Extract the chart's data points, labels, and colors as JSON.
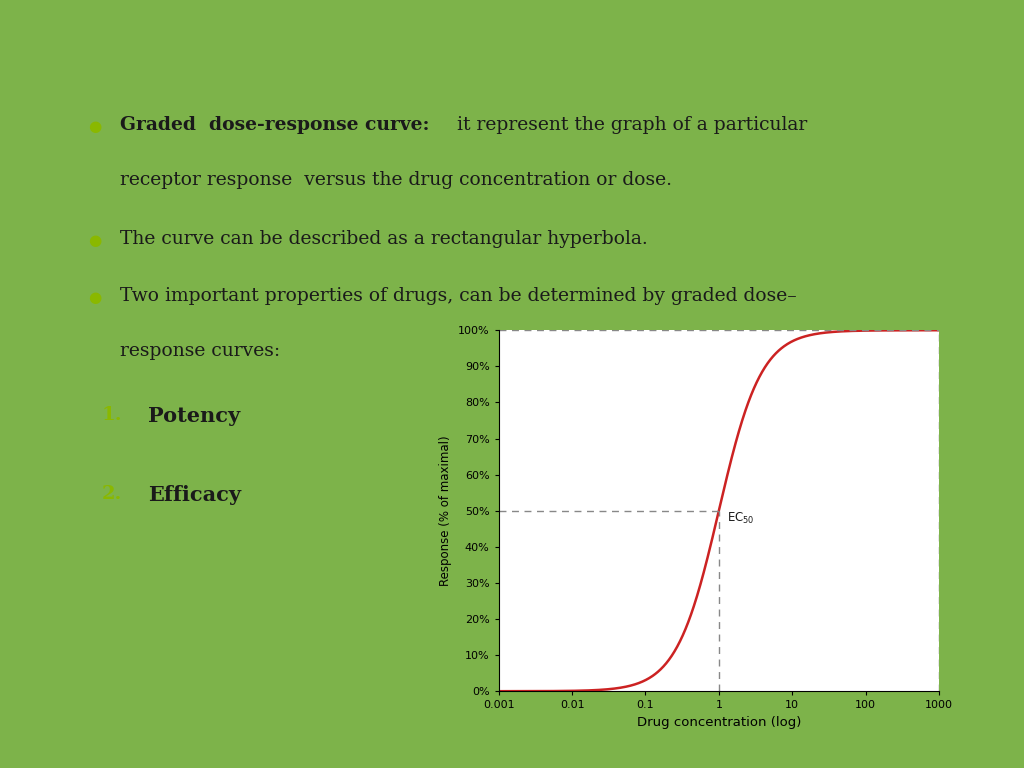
{
  "background_color": "#ffffff",
  "slide_bg": "#7db34a",
  "header_rect_color": "#6b6b55",
  "bullet_color": "#8ab800",
  "number_color": "#8ab800",
  "text_color": "#1a1a1a",
  "curve_color": "#cc2222",
  "dashed_color": "#888888",
  "ylabel": "Response (% of maximal)",
  "xlabel": "Drug concentration (log)",
  "ytick_labels": [
    "0%",
    "10%",
    "20%",
    "30%",
    "40%",
    "50%",
    "60%",
    "70%",
    "80%",
    "90%",
    "100%"
  ],
  "xtick_labels": [
    "0.001",
    "0.01",
    "0.1",
    "1",
    "10",
    "100",
    "1000"
  ],
  "xtick_vals": [
    0.001,
    0.01,
    0.1,
    1,
    10,
    100,
    1000
  ],
  "ec50": 1.0,
  "emax": 100.0,
  "hill_n": 1.5,
  "xmin": 0.001,
  "xmax": 1000,
  "ymin": 0,
  "ymax": 100
}
